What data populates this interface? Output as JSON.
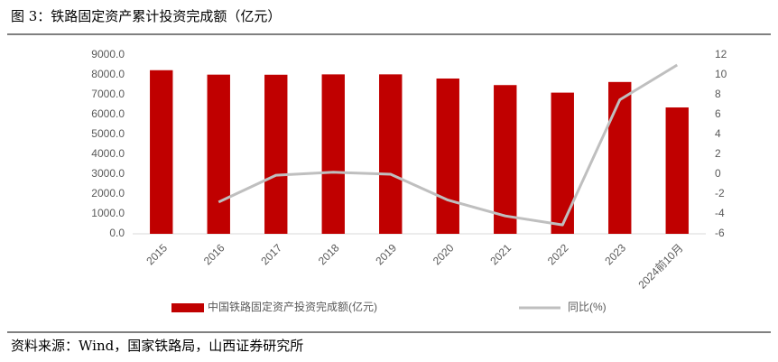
{
  "chart_data": {
    "type": "bar",
    "title": "图 3：铁路固定资产累计投资完成额（亿元）",
    "source": "资料来源：Wind，国家铁路局，山西证券研究所",
    "categories": [
      "2015",
      "2016",
      "2017",
      "2018",
      "2019",
      "2020",
      "2021",
      "2022",
      "2023",
      "2024前10月"
    ],
    "series": [
      {
        "name": "中国铁路固定资产投资完成额(亿元)",
        "type": "bar",
        "color": "#c00000",
        "values": [
          8238,
          8015,
          8010,
          8028,
          8029,
          7819,
          7489,
          7109,
          7645,
          6363
        ]
      },
      {
        "name": "同比(%)",
        "type": "line",
        "color": "#bfbfbf",
        "axis": "y2",
        "values": [
          null,
          -2.8,
          -0.1,
          0.2,
          0.0,
          -2.6,
          -4.2,
          -5.1,
          7.5,
          11.0
        ]
      }
    ],
    "ylim": [
      0,
      9000
    ],
    "yticks": [
      {
        "value": 0,
        "label": "0.0"
      },
      {
        "value": 1000,
        "label": "1000.0"
      },
      {
        "value": 2000,
        "label": "2000.0"
      },
      {
        "value": 3000,
        "label": "3000.0"
      },
      {
        "value": 4000,
        "label": "4000.0"
      },
      {
        "value": 5000,
        "label": "5000.0"
      },
      {
        "value": 6000,
        "label": "6000.0"
      },
      {
        "value": 7000,
        "label": "7000.0"
      },
      {
        "value": 8000,
        "label": "8000.0"
      },
      {
        "value": 9000,
        "label": "9000.0"
      }
    ],
    "y2lim": [
      -6,
      12
    ],
    "y2ticks": [
      -6,
      -4,
      -2,
      0,
      2,
      4,
      6,
      8,
      10,
      12
    ],
    "legend": "bottom"
  }
}
